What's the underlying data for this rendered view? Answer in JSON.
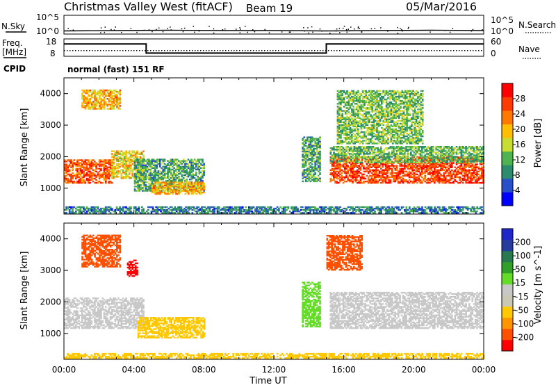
{
  "header": {
    "station": "Christmas Valley West (fitACF)",
    "beam": "Beam 19",
    "date": "05/Mar/2016"
  },
  "labels": {
    "nsky": "N.Sky",
    "nsky_ticks": [
      "10^5",
      "10^0"
    ],
    "nsearch": "N.Search",
    "nsearch_ticks": [
      "10^5",
      "10^0"
    ],
    "freq_lines": [
      "Freq.",
      "[MHz]"
    ],
    "freq_ticks": [
      "18",
      "8"
    ],
    "nave": "Nave",
    "nave_ticks": [
      "60",
      "0"
    ],
    "cpid": "CPID",
    "cpid_value": "normal (fast) 151 RF"
  },
  "colors": {
    "power_scale": [
      "#0000ff",
      "#2850c8",
      "#2d8c6e",
      "#4fb44f",
      "#c8dc32",
      "#ffbe00",
      "#ff7800",
      "#ff3c00",
      "#ff0000"
    ],
    "velocity_scale": [
      "#ff0000",
      "#ff5000",
      "#ff9600",
      "#ffc800",
      "#c8c8b4",
      "#c8c8c8",
      "#64dc28",
      "#32a028",
      "#287850",
      "#283ca0",
      "#1e28c8"
    ]
  },
  "chart_data": [
    {
      "type": "line",
      "name": "status-panels",
      "xlabel": "Time UT",
      "x_ticks": [
        "00:00",
        "04:00",
        "08:00",
        "12:00",
        "16:00",
        "20:00",
        "00:00"
      ],
      "series": [
        {
          "name": "N.Sky",
          "x_hours": [
            0,
            3,
            6,
            9,
            12,
            15,
            18,
            21,
            24
          ],
          "log10_values": [
            0.7,
            0.8,
            0.9,
            0.8,
            0.8,
            0.7,
            0.8,
            0.9,
            0.8
          ]
        },
        {
          "name": "Freq.",
          "x_hours": [
            0,
            4.7,
            4.7,
            15,
            15,
            24
          ],
          "values_mhz": [
            15,
            15,
            9.5,
            9.5,
            15,
            15
          ]
        },
        {
          "name": "Nave",
          "x_hours": [
            0,
            24
          ],
          "values": [
            18,
            18
          ]
        }
      ]
    },
    {
      "type": "heatmap",
      "name": "power",
      "ylabel": "Slant Range [km]",
      "xlabel": "Time UT",
      "colorbar_label": "Power [dB]",
      "colorbar_ticks": [
        "28",
        "24",
        "20",
        "16",
        "12",
        "8",
        "4"
      ],
      "y_ticks": [
        "4000",
        "3000",
        "2000",
        "1000"
      ],
      "ylim": [
        180,
        4500
      ],
      "xlim_hours": [
        0,
        24
      ],
      "x_ticks": [
        "00:00",
        "04:00",
        "08:00",
        "12:00",
        "16:00",
        "20:00",
        "00:00"
      ],
      "regions": [
        {
          "t0": 0.0,
          "t1": 2.7,
          "r0": 1150,
          "r1": 1900,
          "mean": 25
        },
        {
          "t0": 2.7,
          "t1": 4.5,
          "r0": 1300,
          "r1": 2200,
          "mean": 18
        },
        {
          "t0": 1.0,
          "t1": 3.2,
          "r0": 3500,
          "r1": 4100,
          "mean": 20
        },
        {
          "t0": 4.0,
          "t1": 8.0,
          "r0": 900,
          "r1": 1900,
          "mean": 11
        },
        {
          "t0": 5.0,
          "t1": 8.0,
          "r0": 800,
          "r1": 1200,
          "mean": 20
        },
        {
          "t0": 13.6,
          "t1": 14.6,
          "r0": 1200,
          "r1": 2600,
          "mean": 11
        },
        {
          "t0": 15.2,
          "t1": 24.0,
          "r0": 1150,
          "r1": 2000,
          "mean": 26
        },
        {
          "t0": 15.2,
          "t1": 24.0,
          "r0": 1800,
          "r1": 2300,
          "mean": 12
        },
        {
          "t0": 15.6,
          "t1": 20.5,
          "r0": 2400,
          "r1": 4100,
          "mean": 13
        },
        {
          "t0": 0.0,
          "t1": 24.0,
          "r0": 200,
          "r1": 400,
          "mean": 8
        }
      ]
    },
    {
      "type": "heatmap",
      "name": "velocity",
      "ylabel": "Slant Range [km]",
      "xlabel": "Time UT",
      "colorbar_label": "Velocity [m s^-1]",
      "colorbar_ticks": [
        "200",
        "100",
        "50",
        "15",
        "-15",
        "-50",
        "-100",
        "-200"
      ],
      "y_ticks": [
        "4000",
        "3000",
        "2000",
        "1000"
      ],
      "ylim": [
        180,
        4500
      ],
      "xlim_hours": [
        0,
        24
      ],
      "x_ticks": [
        "00:00",
        "04:00",
        "08:00",
        "12:00",
        "16:00",
        "20:00",
        "00:00"
      ],
      "regions": [
        {
          "t0": 0.0,
          "t1": 4.5,
          "r0": 1150,
          "r1": 2100,
          "mean": 0
        },
        {
          "t0": 1.0,
          "t1": 3.2,
          "r0": 3100,
          "r1": 4100,
          "mean": -150
        },
        {
          "t0": 3.6,
          "t1": 4.2,
          "r0": 2800,
          "r1": 3300,
          "mean": -220
        },
        {
          "t0": 4.2,
          "t1": 8.0,
          "r0": 850,
          "r1": 1500,
          "mean": -30
        },
        {
          "t0": 13.6,
          "t1": 14.6,
          "r0": 1200,
          "r1": 2600,
          "mean": 35
        },
        {
          "t0": 15.2,
          "t1": 24.0,
          "r0": 1150,
          "r1": 2300,
          "mean": 0
        },
        {
          "t0": 15.0,
          "t1": 17.0,
          "r0": 3000,
          "r1": 4100,
          "mean": -150
        },
        {
          "t0": 0.0,
          "t1": 24.0,
          "r0": 200,
          "r1": 350,
          "mean": -40
        }
      ]
    }
  ]
}
